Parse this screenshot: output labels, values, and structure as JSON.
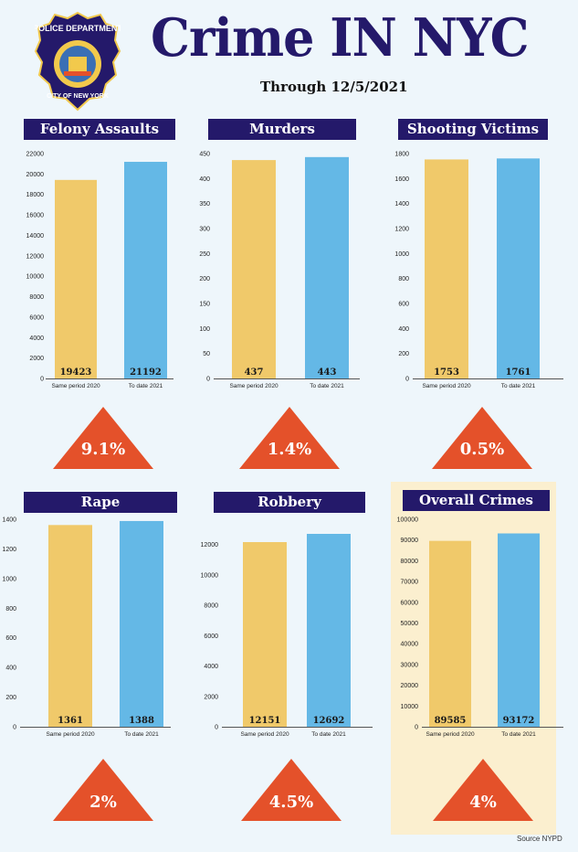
{
  "page": {
    "title": "Crime IN NYC",
    "subtitle": "Through 12/5/2021",
    "source": "Source NYPD"
  },
  "badge": {
    "top_text": "POLICE DEPARTMENT",
    "bottom_text": "CITY OF NEW YORK"
  },
  "colors": {
    "navy": "#24196a",
    "bar_2020": "#f0c96a",
    "bar_2021": "#64b8e6",
    "triangle": "#e4512a",
    "highlight": "#fbefcf",
    "background": "#eef6fb"
  },
  "chart_data": [
    {
      "type": "bar",
      "title": "Felony Assaults",
      "categories": [
        "Same period 2020",
        "To date 2021"
      ],
      "values": [
        19423,
        21192
      ],
      "value_labels": [
        "19423",
        "21192"
      ],
      "ylim": [
        0,
        22000
      ],
      "yticks": [
        0,
        2000,
        4000,
        6000,
        8000,
        10000,
        12000,
        14000,
        16000,
        18000,
        20000,
        22000
      ],
      "change": "9.1%"
    },
    {
      "type": "bar",
      "title": "Murders",
      "categories": [
        "Same period 2020",
        "To date 2021"
      ],
      "values": [
        437,
        443
      ],
      "value_labels": [
        "437",
        "443"
      ],
      "ylim": [
        0,
        450
      ],
      "yticks": [
        0,
        50,
        100,
        150,
        200,
        250,
        300,
        350,
        400,
        450
      ],
      "change": "1.4%"
    },
    {
      "type": "bar",
      "title": "Shooting Victims",
      "categories": [
        "Same period 2020",
        "To date 2021"
      ],
      "values": [
        1753,
        1761
      ],
      "value_labels": [
        "1753",
        "1761"
      ],
      "ylim": [
        0,
        1800
      ],
      "yticks": [
        0,
        200,
        400,
        600,
        800,
        1000,
        1200,
        1400,
        1600,
        1800
      ],
      "change": "0.5%"
    },
    {
      "type": "bar",
      "title": "Rape",
      "categories": [
        "Same period 2020",
        "To date 2021"
      ],
      "values": [
        1361,
        1388
      ],
      "value_labels": [
        "1361",
        "1388"
      ],
      "ylim": [
        0,
        1400
      ],
      "yticks": [
        0,
        200,
        400,
        600,
        800,
        1000,
        1200,
        1400
      ],
      "change": "2%"
    },
    {
      "type": "bar",
      "title": "Robbery",
      "categories": [
        "Same period 2020",
        "To date 2021"
      ],
      "values": [
        12151,
        12692
      ],
      "value_labels": [
        "12151",
        "12692"
      ],
      "ylim": [
        0,
        12692
      ],
      "yticks": [
        0,
        2000,
        4000,
        6000,
        8000,
        10000,
        12000
      ],
      "change": "4.5%"
    },
    {
      "type": "bar",
      "title": "Overall Crimes",
      "categories": [
        "Same period 2020",
        "To date 2021"
      ],
      "values": [
        89585,
        93172
      ],
      "value_labels": [
        "89585",
        "93172"
      ],
      "ylim": [
        0,
        100000
      ],
      "yticks": [
        0,
        10000,
        20000,
        30000,
        40000,
        50000,
        60000,
        70000,
        80000,
        90000,
        100000
      ],
      "change": "4%"
    }
  ]
}
